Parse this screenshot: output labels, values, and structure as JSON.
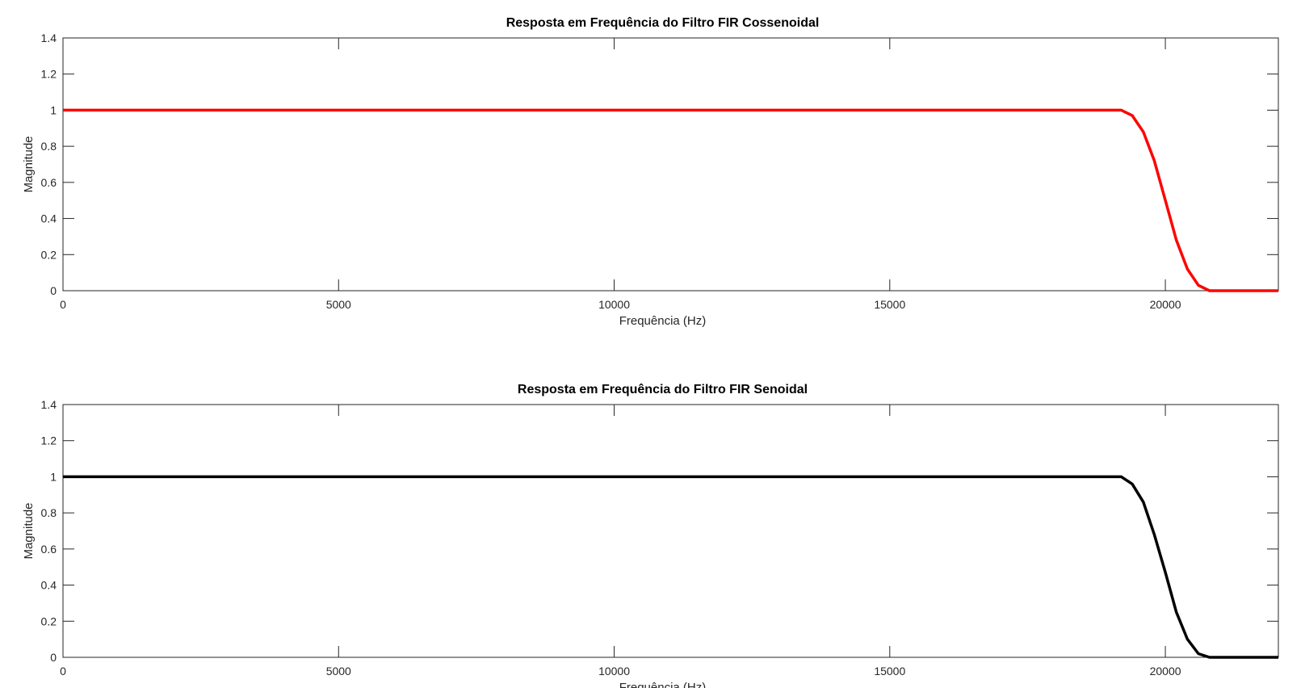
{
  "chart_data": [
    {
      "type": "line",
      "title": "Resposta em Frequência do Filtro FIR Cossenoidal",
      "xlabel": "Frequência (Hz)",
      "ylabel": "Magnitude",
      "xlim": [
        0,
        22050
      ],
      "ylim": [
        0,
        1.4
      ],
      "xticks": [
        0,
        5000,
        10000,
        15000,
        20000
      ],
      "yticks": [
        0,
        0.2,
        0.4,
        0.6,
        0.8,
        1,
        1.2,
        1.4
      ],
      "xtick_labels": [
        "0",
        "5000",
        "10000",
        "15000",
        "20000"
      ],
      "ytick_labels": [
        "0",
        "0.2",
        "0.4",
        "0.6",
        "0.8",
        "1",
        "1.2",
        "1.4"
      ],
      "grid": false,
      "series": [
        {
          "color": "#ff0000",
          "x": [
            0,
            19000,
            19200,
            19400,
            19600,
            19800,
            20000,
            20200,
            20400,
            20600,
            20800,
            21000,
            22050
          ],
          "y": [
            1.0,
            1.0,
            1.0,
            0.97,
            0.88,
            0.72,
            0.5,
            0.28,
            0.12,
            0.03,
            0.0,
            0.0,
            0.0
          ]
        }
      ]
    },
    {
      "type": "line",
      "title": "Resposta em Frequência do Filtro FIR Senoidal",
      "xlabel": "Frequência (Hz)",
      "ylabel": "Magnitude",
      "xlim": [
        0,
        22050
      ],
      "ylim": [
        0,
        1.4
      ],
      "xticks": [
        0,
        5000,
        10000,
        15000,
        20000
      ],
      "yticks": [
        0,
        0.2,
        0.4,
        0.6,
        0.8,
        1,
        1.2,
        1.4
      ],
      "xtick_labels": [
        "0",
        "5000",
        "10000",
        "15000",
        "20000"
      ],
      "ytick_labels": [
        "0",
        "0.2",
        "0.4",
        "0.6",
        "0.8",
        "1",
        "1.2",
        "1.4"
      ],
      "grid": false,
      "series": [
        {
          "color": "#000000",
          "x": [
            0,
            19000,
            19200,
            19400,
            19600,
            19800,
            20000,
            20200,
            20400,
            20600,
            20800,
            21000,
            22050
          ],
          "y": [
            1.0,
            1.0,
            1.0,
            0.96,
            0.86,
            0.68,
            0.47,
            0.25,
            0.1,
            0.02,
            0.0,
            0.0,
            0.0
          ]
        }
      ]
    }
  ]
}
